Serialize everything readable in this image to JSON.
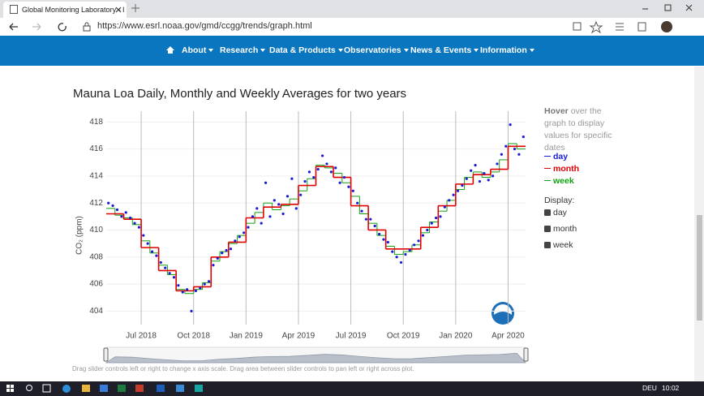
{
  "browser": {
    "tab_title": "Global Monitoring Laboratory - I",
    "url": "https://www.esrl.noaa.gov/gmd/ccgg/trends/graph.html"
  },
  "nav": [
    "About",
    "Research",
    "Data & Products",
    "Observatories",
    "News & Events",
    "Information"
  ],
  "sidebar": {
    "hover_bold": "Hover",
    "hover_text": "over the graph to display values for specific dates",
    "display_label": "Display:"
  },
  "footer_note": "Drag slider controls left or right to change x axis scale. Drag area between slider controls to pan left or right across plot.",
  "taskbar": {
    "language": "DEU",
    "time": "10:02"
  },
  "chart_data": {
    "type": "line",
    "title": "Mauna Loa Daily, Monthly and Weekly Averages for two years",
    "y_label": "CO₂ (ppm)",
    "x": [
      "2018-05",
      "2018-06",
      "2018-07",
      "2018-08",
      "2018-09",
      "2018-10",
      "2018-11",
      "2018-12",
      "2019-01",
      "2019-02",
      "2019-03",
      "2019-04",
      "2019-05",
      "2019-06",
      "2019-07",
      "2019-08",
      "2019-09",
      "2019-10",
      "2019-11",
      "2019-12",
      "2020-01",
      "2020-02",
      "2020-03",
      "2020-04"
    ],
    "xlim": [
      "2018-05",
      "2020-05"
    ],
    "xticks": [
      {
        "value": "2018-07",
        "label": "Jul 2018"
      },
      {
        "value": "2018-10",
        "label": "Oct 2018"
      },
      {
        "value": "2019-01",
        "label": "Jan 2019"
      },
      {
        "value": "2019-04",
        "label": "Apr 2019"
      },
      {
        "value": "2019-07",
        "label": "Jul 2019"
      },
      {
        "value": "2019-10",
        "label": "Oct 2019"
      },
      {
        "value": "2020-01",
        "label": "Jan 2020"
      },
      {
        "value": "2020-04",
        "label": "Apr 2020"
      }
    ],
    "ylim": [
      403.0,
      418.8
    ],
    "yticks": [
      404,
      406,
      408,
      410,
      412,
      414,
      416,
      418
    ],
    "grid": true,
    "series": [
      {
        "name": "day",
        "color": "#1a1ad6",
        "style": "points",
        "values": [
          [
            412.0,
            411.8,
            411.5,
            411.0
          ],
          [
            411.3,
            410.9,
            410.5,
            410.2
          ],
          [
            409.6,
            409.0,
            408.4,
            408.1
          ],
          [
            407.6,
            407.2,
            406.8,
            406.5
          ],
          [
            405.9,
            405.4,
            405.6,
            404.0
          ],
          [
            405.5,
            405.7,
            406.0,
            406.2
          ],
          [
            407.4,
            407.9,
            408.3,
            408.5
          ],
          [
            408.6,
            409.2,
            409.5,
            409.8
          ],
          [
            410.2,
            411.0,
            411.6,
            410.5
          ],
          [
            413.5,
            411.0,
            412.2,
            411.9
          ],
          [
            411.2,
            412.5,
            413.8,
            411.6
          ],
          [
            412.6,
            413.6,
            414.3,
            413.9
          ],
          [
            414.5,
            415.5,
            414.9,
            414.3
          ],
          [
            414.6,
            413.5,
            413.9,
            413.2
          ],
          [
            412.9,
            412.0,
            411.4,
            410.8
          ],
          [
            410.8,
            410.3,
            409.7,
            409.3
          ],
          [
            409.1,
            408.4,
            408.0,
            407.6
          ],
          [
            408.2,
            408.5,
            408.9,
            409.2
          ],
          [
            409.6,
            410.0,
            410.5,
            410.9
          ],
          [
            411.0,
            411.7,
            412.2,
            412.6
          ],
          [
            412.9,
            413.3,
            413.8,
            414.4
          ],
          [
            414.8,
            413.6,
            414.2,
            413.7
          ],
          [
            414.0,
            414.9,
            415.6,
            416.2
          ],
          [
            417.8,
            416.0,
            415.6,
            416.9
          ]
        ]
      },
      {
        "name": "month",
        "color": "#e00000",
        "style": "step",
        "values": [
          411.2,
          410.8,
          408.7,
          407.0,
          405.5,
          405.8,
          408.0,
          409.1,
          410.9,
          411.7,
          411.9,
          413.3,
          414.7,
          413.9,
          411.8,
          410.0,
          408.6,
          408.6,
          410.2,
          411.8,
          413.4,
          414.1,
          414.5,
          416.2
        ]
      },
      {
        "name": "week",
        "color": "#10a010",
        "style": "step",
        "values": [
          [
            411.6,
            411.1
          ],
          [
            410.9,
            410.4
          ],
          [
            409.2,
            408.3
          ],
          [
            407.4,
            406.7
          ],
          [
            405.6,
            405.3
          ],
          [
            405.6,
            406.1
          ],
          [
            407.7,
            408.4
          ],
          [
            409.0,
            409.6
          ],
          [
            410.5,
            411.3
          ],
          [
            412.0,
            411.5
          ],
          [
            411.8,
            412.3
          ],
          [
            412.9,
            413.8
          ],
          [
            414.8,
            414.6
          ],
          [
            414.2,
            413.5
          ],
          [
            412.5,
            411.2
          ],
          [
            410.5,
            409.6
          ],
          [
            408.8,
            408.2
          ],
          [
            408.4,
            408.9
          ],
          [
            409.8,
            410.6
          ],
          [
            411.4,
            412.2
          ],
          [
            413.0,
            413.9
          ],
          [
            414.3,
            413.9
          ],
          [
            414.3,
            415.2
          ],
          [
            416.4,
            416.0
          ]
        ]
      }
    ]
  }
}
